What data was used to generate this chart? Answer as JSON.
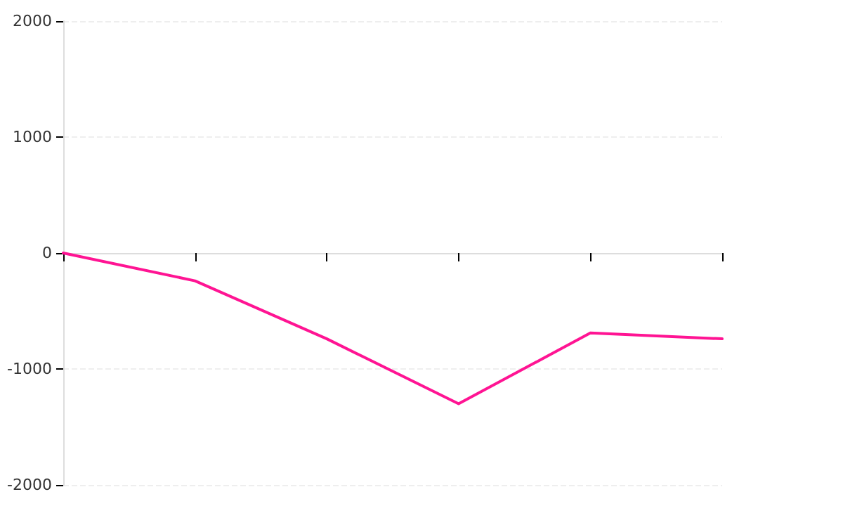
{
  "chart_data": {
    "type": "line",
    "categories": [
      null,
      null,
      null,
      null,
      null,
      null
    ],
    "series": [
      {
        "color": "#ff1493",
        "values": [
          0,
          -240,
          -740,
          -1300,
          -690,
          -740
        ]
      }
    ],
    "ylim": [
      -2000,
      2000
    ],
    "yticks": [
      -2000,
      -1000,
      0,
      1000,
      2000
    ],
    "grid": "y",
    "marker": "none",
    "line_style": "solid"
  }
}
